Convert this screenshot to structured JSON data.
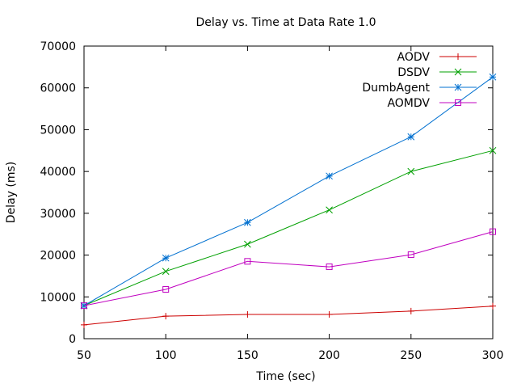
{
  "chart_data": {
    "type": "line",
    "title": "Delay vs. Time at Data Rate 1.0",
    "xlabel": "Time (sec)",
    "ylabel": "Delay (ms)",
    "x": [
      50,
      100,
      150,
      200,
      250,
      300
    ],
    "xlim": [
      50,
      300
    ],
    "ylim": [
      0,
      70000
    ],
    "x_ticks": [
      "50",
      "100",
      "150",
      "200",
      "250",
      "300"
    ],
    "y_ticks": [
      "0",
      "10000",
      "20000",
      "30000",
      "40000",
      "50000",
      "60000",
      "70000"
    ],
    "grid": false,
    "legend_position": "top-right",
    "series": [
      {
        "name": "AODV",
        "color": "#cc0000",
        "marker": "plus",
        "values": [
          3300,
          5400,
          5800,
          5800,
          6600,
          7800
        ]
      },
      {
        "name": "DSDV",
        "color": "#00a000",
        "marker": "x",
        "values": [
          7900,
          16100,
          22600,
          30800,
          40000,
          45000
        ]
      },
      {
        "name": "DumbAgent",
        "color": "#0070d0",
        "marker": "star",
        "values": [
          7900,
          19300,
          27800,
          38900,
          48300,
          62600
        ]
      },
      {
        "name": "AOMDV",
        "color": "#c000c0",
        "marker": "square",
        "values": [
          7900,
          11800,
          18500,
          17200,
          20100,
          25600
        ]
      }
    ]
  }
}
